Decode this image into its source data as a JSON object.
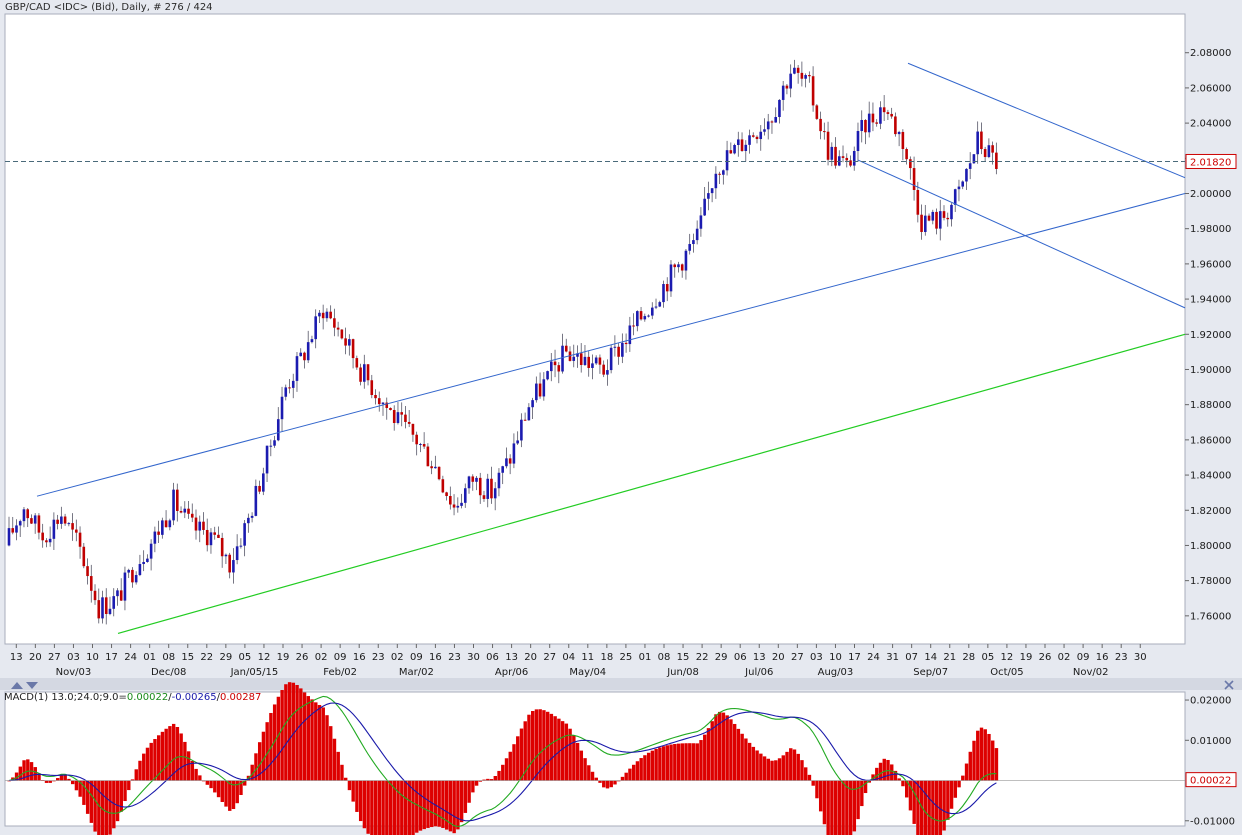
{
  "header": {
    "title": "GBP/CAD <IDC> (Bid), Daily, # 276 / 424"
  },
  "macd_header": {
    "prefix": "MACD(1) 13.0;24.0;9.0=",
    "v1": "0.00022",
    "sep1": "/",
    "v2": "-0.00265",
    "sep2": "/",
    "v3": "0.00287"
  },
  "colors": {
    "up_body": "#1b1bb0",
    "down_body": "#c00000",
    "wick": "#555566",
    "trendline": "#3366cc",
    "support": "#22cc22",
    "macd_line": "#22aa22",
    "signal_line": "#1a1aaa",
    "histogram": "#dd0000",
    "price_label": "#cc0000"
  },
  "chart_data": [
    {
      "type": "candlestick",
      "title": "GBP/CAD <IDC> (Bid), Daily",
      "last_price_label": "2.01820",
      "last_price": 2.0182,
      "y_axis": {
        "range": [
          1.744,
          2.102
        ],
        "ticks": [
          "1.76000",
          "1.78000",
          "1.80000",
          "1.82000",
          "1.84000",
          "1.86000",
          "1.88000",
          "1.90000",
          "1.92000",
          "1.94000",
          "1.96000",
          "1.98000",
          "2.00000",
          "2.02000",
          "2.04000",
          "2.06000",
          "2.08000"
        ]
      },
      "x_axis": {
        "day_ticks": [
          "13",
          "20",
          "27",
          "03",
          "10",
          "17",
          "24",
          "01",
          "08",
          "15",
          "22",
          "29",
          "05",
          "12",
          "19",
          "26",
          "02",
          "09",
          "16",
          "23",
          "02",
          "09",
          "16",
          "23",
          "30",
          "06",
          "13",
          "20",
          "27",
          "04",
          "11",
          "18",
          "25",
          "01",
          "08",
          "15",
          "22",
          "29",
          "06",
          "13",
          "20",
          "27",
          "03",
          "10",
          "17",
          "24",
          "31",
          "07",
          "14",
          "21",
          "28",
          "05",
          "12",
          "19",
          "26",
          "02",
          "09",
          "16",
          "23",
          "30"
        ],
        "month_labels": [
          "Nov/03",
          "Dec/08",
          "Jan/05/15",
          "Feb/02",
          "Mar/02",
          "Apr/06",
          "May/04",
          "Jun/08",
          "Jul/06",
          "Aug/03",
          "Sep/07",
          "Oct/05",
          "Nov/02"
        ]
      },
      "weekly_closes": [
        1.8,
        1.822,
        1.805,
        1.818,
        1.798,
        1.765,
        1.77,
        1.79,
        1.805,
        1.825,
        1.81,
        1.806,
        1.79,
        1.815,
        1.85,
        1.89,
        1.91,
        1.935,
        1.92,
        1.9,
        1.885,
        1.87,
        1.86,
        1.845,
        1.822,
        1.838,
        1.83,
        1.85,
        1.88,
        1.895,
        1.91,
        1.905,
        1.9,
        1.915,
        1.93,
        1.945,
        1.96,
        1.975,
        2.015,
        2.025,
        2.035,
        2.045,
        2.07,
        2.06,
        2.025,
        2.015,
        2.04,
        2.05,
        2.03,
        1.985,
        1.985,
        2.0,
        2.03,
        2.018
      ],
      "trendlines": [
        {
          "name": "upper-channel",
          "points": [
            [
              "Nov/20",
              1.828
            ],
            [
              "Nov/02+",
              2.0
            ]
          ]
        },
        {
          "name": "descending-top",
          "points": [
            [
              "Aug/27",
              2.074
            ],
            [
              "Nov/02+",
              2.009
            ]
          ]
        },
        {
          "name": "descending-bottom",
          "points": [
            [
              "Aug/10",
              2.019
            ],
            [
              "Nov/02+",
              1.935
            ]
          ]
        },
        {
          "name": "support",
          "points": [
            [
              "Nov/24",
              1.75
            ],
            [
              "Nov/02+",
              1.92
            ]
          ]
        }
      ],
      "reference_line": 2.0182
    },
    {
      "type": "macd",
      "title": "MACD(1) 13.0;24.0;9.0",
      "macd_value": 0.00022,
      "signal_value": -0.00265,
      "histogram_value": 0.00287,
      "last_value_label": "0.00022",
      "y_axis": {
        "range": [
          -0.0113,
          0.022
        ],
        "ticks": [
          "0.02000",
          "0.01000",
          "-0.01000"
        ]
      }
    }
  ]
}
